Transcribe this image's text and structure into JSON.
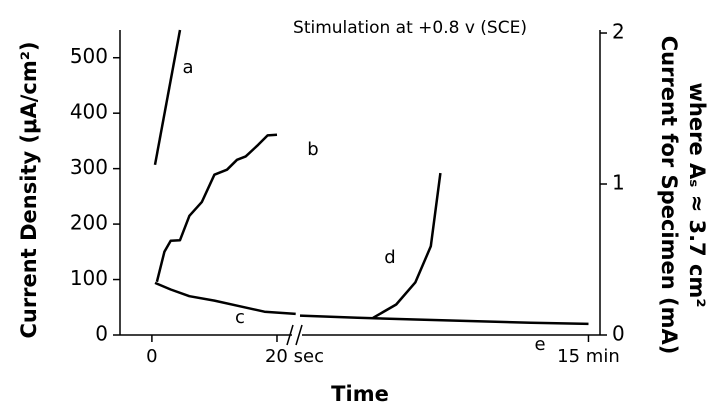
{
  "chart_data": {
    "type": "line",
    "title": "Stimulation at +0.8 v (SCE)",
    "x_label": "Time",
    "y_label": "Current Density (μA/cm²)",
    "y2_label": [
      "Current for Specimen (mA)",
      "where Aₛ ≈ 3.7 cm²"
    ],
    "x_segments": [
      {
        "xlim": [
          -5.1,
          23.2
        ],
        "xticks": [
          0,
          {
            "value": 20,
            "label": "20 sec"
          }
        ]
      },
      {
        "xlim": [
          0,
          15.6
        ],
        "xticks": [
          {
            "value": 15,
            "label": "15 min"
          }
        ]
      }
    ],
    "ylim": [
      0,
      550
    ],
    "yticks": [
      0,
      100,
      200,
      300,
      400,
      500
    ],
    "y2lim": [
      0,
      2.02
    ],
    "y2ticks": [
      0,
      1,
      2
    ],
    "series": [
      {
        "name": "a",
        "color": "#000000",
        "segment": 0,
        "x": [
          0.5,
          4.5
        ],
        "values": [
          307,
          550
        ]
      },
      {
        "name": "b",
        "color": "#000000",
        "segment": 0,
        "x": [
          0.8,
          2,
          3,
          4.5,
          6,
          8,
          10,
          12,
          13.6,
          15,
          17,
          18.5,
          20
        ],
        "values": [
          96,
          150,
          170,
          171,
          215,
          240,
          289,
          298,
          316,
          322,
          343,
          360,
          361
        ]
      },
      {
        "name": "c",
        "color": "#000000",
        "segment": 0,
        "x": [
          0.5,
          3,
          6,
          10,
          14,
          18,
          23
        ],
        "values": [
          94,
          82,
          70,
          62,
          52,
          42,
          38
        ]
      },
      {
        "name": "d",
        "color": "#000000",
        "segment": 1,
        "x": [
          3.8,
          5,
          6,
          6.8,
          7.3
        ],
        "values": [
          31,
          55,
          95,
          160,
          292
        ]
      },
      {
        "name": "e",
        "color": "#000000",
        "segment": 1,
        "x": [
          0,
          3,
          6,
          9,
          12,
          15
        ],
        "values": [
          35,
          31,
          28,
          25,
          22,
          20
        ]
      }
    ]
  }
}
